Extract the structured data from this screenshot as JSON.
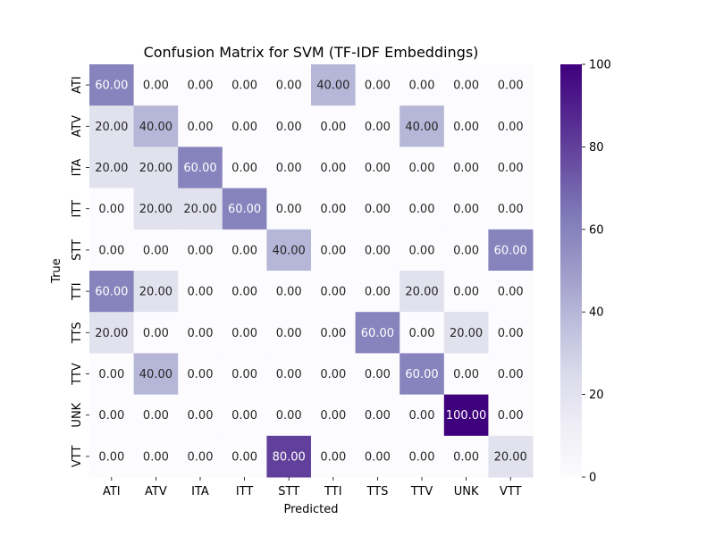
{
  "chart_data": {
    "type": "heatmap",
    "title": "Confusion Matrix for SVM (TF-IDF Embeddings)",
    "xlabel": "Predicted",
    "ylabel": "True",
    "x_categories": [
      "ATI",
      "ATV",
      "ITA",
      "ITT",
      "STT",
      "TTI",
      "TTS",
      "TTV",
      "UNK",
      "VTT"
    ],
    "y_categories": [
      "ATI",
      "ATV",
      "ITA",
      "ITT",
      "STT",
      "TTI",
      "TTS",
      "TTV",
      "UNK",
      "VTT"
    ],
    "values": [
      [
        60,
        0,
        0,
        0,
        0,
        40,
        0,
        0,
        0,
        0
      ],
      [
        20,
        40,
        0,
        0,
        0,
        0,
        0,
        40,
        0,
        0
      ],
      [
        20,
        20,
        60,
        0,
        0,
        0,
        0,
        0,
        0,
        0
      ],
      [
        0,
        20,
        20,
        60,
        0,
        0,
        0,
        0,
        0,
        0
      ],
      [
        0,
        0,
        0,
        0,
        40,
        0,
        0,
        0,
        0,
        60
      ],
      [
        60,
        20,
        0,
        0,
        0,
        0,
        0,
        20,
        0,
        0
      ],
      [
        20,
        0,
        0,
        0,
        0,
        0,
        60,
        0,
        20,
        0
      ],
      [
        0,
        40,
        0,
        0,
        0,
        0,
        0,
        60,
        0,
        0
      ],
      [
        0,
        0,
        0,
        0,
        0,
        0,
        0,
        0,
        100,
        0
      ],
      [
        0,
        0,
        0,
        0,
        80,
        0,
        0,
        0,
        0,
        20
      ]
    ],
    "value_format": "2 decimals",
    "colorscale": "Purples",
    "colorbar": {
      "range": [
        0,
        100
      ],
      "ticks": [
        0,
        20,
        40,
        60,
        80,
        100
      ]
    },
    "legend": "colorbar-right",
    "grid": false
  }
}
